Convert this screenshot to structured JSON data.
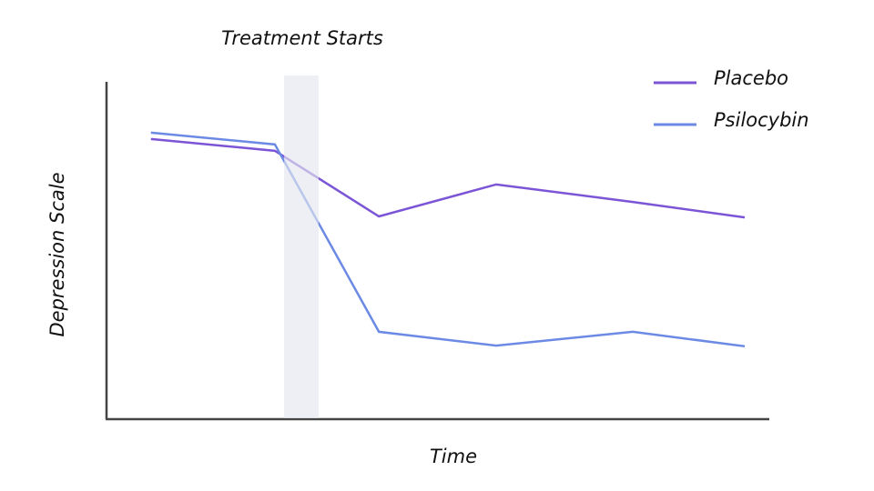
{
  "chart_data": {
    "type": "line",
    "annotation": "Treatment Starts",
    "treatment_span": [
      26.8,
      32.0
    ],
    "xlabel": "Time",
    "ylabel": "Depression Scale",
    "x": [
      6.7,
      25.4,
      41.1,
      58.8,
      79.4,
      96.3
    ],
    "xlim": [
      0,
      100
    ],
    "ylim": [
      0,
      100
    ],
    "legend": "top-right",
    "series": [
      {
        "name": "Placebo",
        "color": "#7b55d6",
        "values": [
          83.0,
          79.5,
          60.0,
          69.5,
          64.3,
          59.7
        ]
      },
      {
        "name": "Psilocybin",
        "color": "#6c8ae4",
        "values": [
          84.9,
          81.4,
          25.7,
          21.6,
          25.7,
          21.4
        ]
      }
    ]
  }
}
